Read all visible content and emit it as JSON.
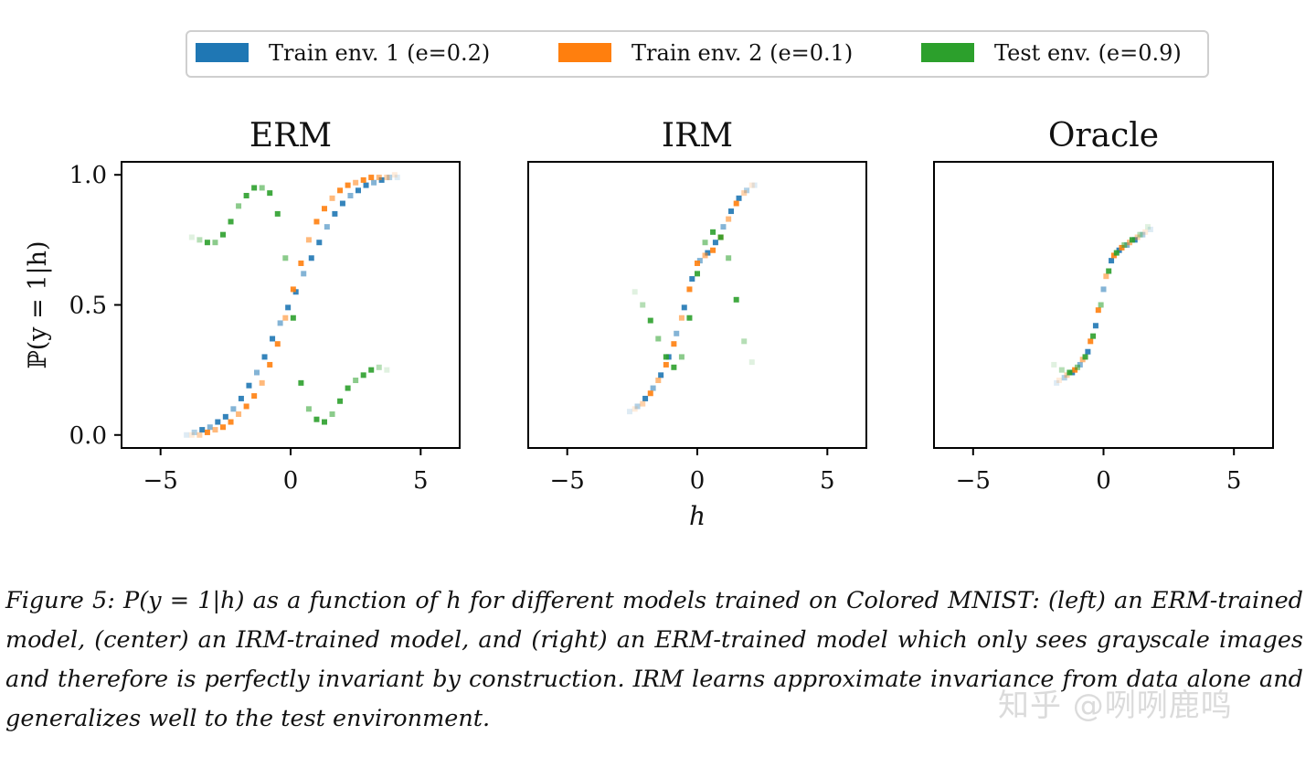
{
  "legend": [
    {
      "label": "Train env. 1 (e=0.2)",
      "color": "#1f77b4"
    },
    {
      "label": "Train env. 2 (e=0.1)",
      "color": "#ff7f0e"
    },
    {
      "label": "Test env. (e=0.9)",
      "color": "#2ca02c"
    }
  ],
  "chart_data": [
    {
      "type": "scatter",
      "title": "ERM",
      "xlabel": "",
      "ylabel": "ℙ(y = 1|h)",
      "xlim": [
        -6.5,
        6.5
      ],
      "ylim": [
        -0.05,
        1.05
      ],
      "xticks": [
        "−5",
        "0",
        "5"
      ],
      "yticks": [
        "0.0",
        "0.5",
        "1.0"
      ],
      "show_yticklabels": true,
      "grid": false,
      "series": [
        {
          "name": "Train env. 1 (e=0.2)",
          "x": [
            -4.0,
            -3.7,
            -3.4,
            -3.1,
            -2.8,
            -2.5,
            -2.2,
            -1.9,
            -1.6,
            -1.3,
            -1.0,
            -0.7,
            -0.4,
            -0.1,
            0.2,
            0.5,
            0.8,
            1.1,
            1.4,
            1.7,
            2.0,
            2.3,
            2.6,
            2.9,
            3.2,
            3.5,
            3.8,
            4.1
          ],
          "y": [
            0.0,
            0.01,
            0.02,
            0.03,
            0.05,
            0.07,
            0.1,
            0.14,
            0.19,
            0.24,
            0.3,
            0.37,
            0.43,
            0.49,
            0.55,
            0.62,
            0.68,
            0.74,
            0.8,
            0.85,
            0.89,
            0.92,
            0.94,
            0.96,
            0.97,
            0.98,
            0.99,
            0.99
          ]
        },
        {
          "name": "Train env. 2 (e=0.1)",
          "x": [
            -3.8,
            -3.5,
            -3.2,
            -2.9,
            -2.6,
            -2.3,
            -2.0,
            -1.7,
            -1.4,
            -1.1,
            -0.8,
            -0.5,
            -0.2,
            0.1,
            0.4,
            0.7,
            1.0,
            1.3,
            1.6,
            1.9,
            2.2,
            2.5,
            2.8,
            3.1,
            3.4,
            3.7,
            4.0
          ],
          "y": [
            0.0,
            0.0,
            0.01,
            0.02,
            0.03,
            0.05,
            0.08,
            0.11,
            0.15,
            0.2,
            0.27,
            0.35,
            0.45,
            0.56,
            0.66,
            0.75,
            0.82,
            0.87,
            0.91,
            0.94,
            0.96,
            0.97,
            0.98,
            0.99,
            0.99,
            0.99,
            1.0
          ]
        },
        {
          "name": "Test env. (e=0.9)",
          "x": [
            -3.8,
            -3.5,
            -3.2,
            -2.9,
            -2.6,
            -2.3,
            -2.0,
            -1.7,
            -1.4,
            -1.1,
            -0.8,
            -0.5,
            -0.2,
            0.1,
            0.4,
            0.7,
            1.0,
            1.3,
            1.6,
            1.9,
            2.2,
            2.5,
            2.8,
            3.1,
            3.4,
            3.7
          ],
          "y": [
            0.76,
            0.75,
            0.74,
            0.74,
            0.77,
            0.82,
            0.88,
            0.92,
            0.95,
            0.95,
            0.93,
            0.85,
            0.68,
            0.45,
            0.2,
            0.1,
            0.06,
            0.05,
            0.08,
            0.13,
            0.18,
            0.21,
            0.23,
            0.25,
            0.26,
            0.25
          ]
        }
      ]
    },
    {
      "type": "scatter",
      "title": "IRM",
      "xlabel": "h",
      "ylabel": "",
      "xlim": [
        -6.5,
        6.5
      ],
      "ylim": [
        -0.05,
        1.05
      ],
      "xticks": [
        "−5",
        "0",
        "5"
      ],
      "yticks": [],
      "show_yticklabels": false,
      "grid": false,
      "series": [
        {
          "name": "Train env. 1 (e=0.2)",
          "x": [
            -2.6,
            -2.3,
            -2.0,
            -1.7,
            -1.4,
            -1.1,
            -0.8,
            -0.5,
            -0.2,
            0.1,
            0.4,
            0.7,
            1.0,
            1.3,
            1.6,
            1.9,
            2.2
          ],
          "y": [
            0.09,
            0.11,
            0.14,
            0.18,
            0.23,
            0.3,
            0.39,
            0.49,
            0.6,
            0.67,
            0.7,
            0.74,
            0.8,
            0.86,
            0.91,
            0.94,
            0.96
          ]
        },
        {
          "name": "Train env. 2 (e=0.1)",
          "x": [
            -2.4,
            -2.1,
            -1.8,
            -1.5,
            -1.2,
            -0.9,
            -0.6,
            -0.3,
            0.0,
            0.3,
            0.6,
            0.9,
            1.2,
            1.5,
            1.8,
            2.1
          ],
          "y": [
            0.1,
            0.12,
            0.16,
            0.21,
            0.27,
            0.35,
            0.45,
            0.56,
            0.66,
            0.69,
            0.71,
            0.76,
            0.83,
            0.89,
            0.93,
            0.96
          ]
        },
        {
          "name": "Test env. (e=0.9)",
          "x": [
            -2.4,
            -2.1,
            -1.8,
            -1.5,
            -1.2,
            -0.9,
            -0.6,
            -0.3,
            0.0,
            0.3,
            0.6,
            0.9,
            1.2,
            1.5,
            1.8,
            2.1
          ],
          "y": [
            0.55,
            0.5,
            0.44,
            0.37,
            0.3,
            0.26,
            0.3,
            0.45,
            0.62,
            0.74,
            0.78,
            0.76,
            0.68,
            0.52,
            0.36,
            0.28
          ]
        }
      ]
    },
    {
      "type": "scatter",
      "title": "Oracle",
      "xlabel": "",
      "ylabel": "",
      "xlim": [
        -6.5,
        6.5
      ],
      "ylim": [
        -0.05,
        1.05
      ],
      "xticks": [
        "−5",
        "0",
        "5"
      ],
      "yticks": [],
      "show_yticklabels": false,
      "grid": false,
      "series": [
        {
          "name": "Train env. 1 (e=0.2)",
          "x": [
            -1.8,
            -1.5,
            -1.2,
            -0.9,
            -0.6,
            -0.3,
            0.0,
            0.3,
            0.6,
            0.9,
            1.2,
            1.5,
            1.8
          ],
          "y": [
            0.2,
            0.22,
            0.24,
            0.27,
            0.32,
            0.42,
            0.56,
            0.67,
            0.71,
            0.73,
            0.75,
            0.77,
            0.79
          ]
        },
        {
          "name": "Train env. 2 (e=0.1)",
          "x": [
            -1.7,
            -1.4,
            -1.1,
            -0.8,
            -0.5,
            -0.2,
            0.1,
            0.4,
            0.7,
            1.0,
            1.3,
            1.6
          ],
          "y": [
            0.21,
            0.23,
            0.25,
            0.29,
            0.36,
            0.48,
            0.61,
            0.69,
            0.72,
            0.74,
            0.76,
            0.78
          ]
        },
        {
          "name": "Test env. (e=0.9)",
          "x": [
            -1.9,
            -1.6,
            -1.3,
            -1.0,
            -0.7,
            -0.4,
            -0.1,
            0.2,
            0.5,
            0.8,
            1.1,
            1.4,
            1.7
          ],
          "y": [
            0.27,
            0.25,
            0.24,
            0.26,
            0.3,
            0.38,
            0.5,
            0.63,
            0.7,
            0.73,
            0.75,
            0.77,
            0.8
          ]
        }
      ]
    }
  ],
  "caption": "Figure 5: P(y = 1|h) as a function of h for different models trained on Colored MNIST: (left) an ERM-trained model, (center) an IRM-trained model, and (right) an ERM-trained model which only sees grayscale images and therefore is perfectly invariant by construction. IRM learns approximate invariance from data alone and generalizes well to the test environment.",
  "watermark": "知乎 @咧咧鹿鸣"
}
